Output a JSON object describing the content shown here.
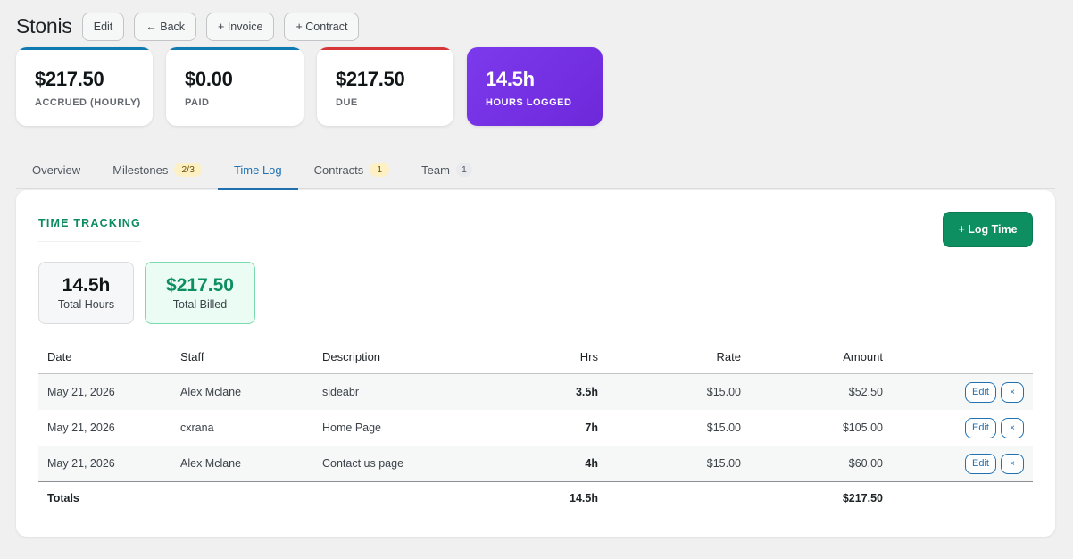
{
  "header": {
    "title": "Stonis",
    "buttons": {
      "edit": "Edit",
      "back": "← Back",
      "invoice": "+ Invoice",
      "contract": "+ Contract"
    }
  },
  "stats": [
    {
      "value": "$217.50",
      "label": "ACCRUED (HOURLY)",
      "accent": "#0e7ab0"
    },
    {
      "value": "$0.00",
      "label": "PAID",
      "accent": "#0e7ab0"
    },
    {
      "value": "$217.50",
      "label": "DUE",
      "accent": "#d63638"
    },
    {
      "value": "14.5h",
      "label": "HOURS LOGGED",
      "accent": "#7c3aed"
    }
  ],
  "tabs": [
    {
      "label": "Overview",
      "badge": ""
    },
    {
      "label": "Milestones",
      "badge": "2/3"
    },
    {
      "label": "Time Log",
      "badge": ""
    },
    {
      "label": "Contracts",
      "badge": "1"
    },
    {
      "label": "Team",
      "badge": "1"
    }
  ],
  "active_tab": "Time Log",
  "time_tracking": {
    "title": "TIME TRACKING",
    "log_button": "+ Log Time",
    "summary": {
      "total_hours_value": "14.5h",
      "total_hours_label": "Total Hours",
      "total_billed_value": "$217.50",
      "total_billed_label": "Total Billed"
    }
  },
  "table": {
    "headers": {
      "date": "Date",
      "staff": "Staff",
      "description": "Description",
      "hrs": "Hrs",
      "rate": "Rate",
      "amount": "Amount"
    },
    "rows": [
      {
        "date": "May 21, 2026",
        "staff": "Alex Mclane",
        "description": "sideabr",
        "hrs": "3.5h",
        "rate": "$15.00",
        "amount": "$52.50"
      },
      {
        "date": "May 21, 2026",
        "staff": "cxrana",
        "description": "Home Page",
        "hrs": "7h",
        "rate": "$15.00",
        "amount": "$105.00"
      },
      {
        "date": "May 21, 2026",
        "staff": "Alex Mclane",
        "description": "Contact us page",
        "hrs": "4h",
        "rate": "$15.00",
        "amount": "$60.00"
      }
    ],
    "edit_label": "Edit",
    "delete_label": "×",
    "totals": {
      "label": "Totals",
      "hrs": "14.5h",
      "amount": "$217.50"
    }
  }
}
